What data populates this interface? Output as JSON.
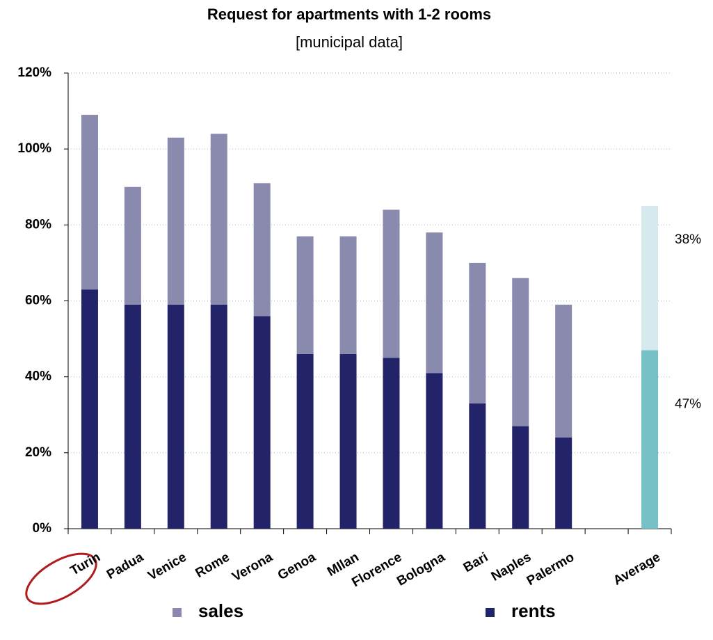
{
  "chart_data": {
    "type": "stacked-bar",
    "title": "Request for apartments with 1-2 rooms",
    "subtitle": "[municipal data]",
    "categories": [
      "Turin",
      "Padua",
      "Venice",
      "Rome",
      "Verona",
      "Genoa",
      "MIlan",
      "Florence",
      "Bologna",
      "Bari",
      "Naples",
      "Palermo",
      null,
      "Average"
    ],
    "series": [
      {
        "name": "rents",
        "color": "#23236a",
        "colors": [
          "#23236a",
          "#23236a",
          "#23236a",
          "#23236a",
          "#23236a",
          "#23236a",
          "#23236a",
          "#23236a",
          "#23236a",
          "#23236a",
          "#23236a",
          "#23236a",
          null,
          "#76c1c6"
        ],
        "values": [
          63,
          59,
          59,
          59,
          56,
          46,
          46,
          45,
          41,
          33,
          27,
          24,
          null,
          47
        ],
        "value_labels": [
          null,
          null,
          null,
          null,
          null,
          null,
          null,
          null,
          null,
          null,
          null,
          null,
          null,
          "47%"
        ]
      },
      {
        "name": "sales",
        "color": "#8a8aae",
        "colors": [
          "#8a8aae",
          "#8a8aae",
          "#8a8aae",
          "#8a8aae",
          "#8a8aae",
          "#8a8aae",
          "#8a8aae",
          "#8a8aae",
          "#8a8aae",
          "#8a8aae",
          "#8a8aae",
          "#8a8aae",
          null,
          "#d6eaee"
        ],
        "values": [
          46,
          31,
          44,
          45,
          35,
          31,
          31,
          39,
          37,
          37,
          39,
          35,
          null,
          38
        ],
        "value_labels": [
          null,
          null,
          null,
          null,
          null,
          null,
          null,
          null,
          null,
          null,
          null,
          null,
          null,
          "38%"
        ]
      }
    ],
    "ylim": [
      0,
      120
    ],
    "yticks": [
      {
        "value": 0,
        "label": "0%"
      },
      {
        "value": 20,
        "label": "20%"
      },
      {
        "value": 40,
        "label": "40%"
      },
      {
        "value": 60,
        "label": "60%"
      },
      {
        "value": 80,
        "label": "80%"
      },
      {
        "value": 100,
        "label": "100%"
      },
      {
        "value": 120,
        "label": "120%"
      }
    ],
    "grid": true
  }
}
